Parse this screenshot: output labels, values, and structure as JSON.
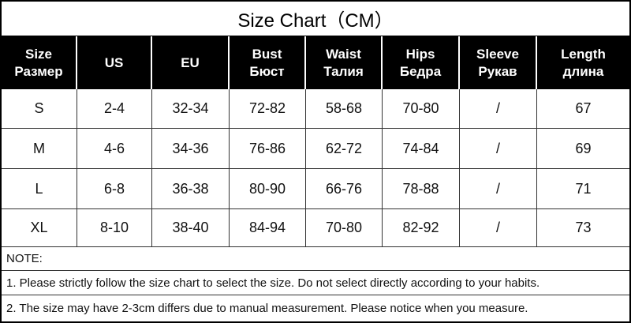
{
  "title": "Size Chart（CM）",
  "table": {
    "header": [
      [
        "Size",
        "Размер"
      ],
      [
        "US"
      ],
      [
        "EU"
      ],
      [
        "Bust",
        "Бюст"
      ],
      [
        "Waist",
        "Талия"
      ],
      [
        "Hips",
        "Бедра"
      ],
      [
        "Sleeve",
        "Рукав"
      ],
      [
        "Length",
        "длина"
      ]
    ],
    "rows": [
      [
        "S",
        "2-4",
        "32-34",
        "72-82",
        "58-68",
        "70-80",
        "/",
        "67"
      ],
      [
        "M",
        "4-6",
        "34-36",
        "76-86",
        "62-72",
        "74-84",
        "/",
        "69"
      ],
      [
        "L",
        "6-8",
        "36-38",
        "80-90",
        "66-76",
        "78-88",
        "/",
        "71"
      ],
      [
        "XL",
        "8-10",
        "38-40",
        "84-94",
        "70-80",
        "82-92",
        "/",
        "73"
      ]
    ]
  },
  "notes": [
    "NOTE:",
    "1. Please strictly follow the size chart  to select the size. Do not select directly according to your habits.",
    "2. The size may have 2-3cm differs due to manual measurement. Please notice when you measure."
  ]
}
